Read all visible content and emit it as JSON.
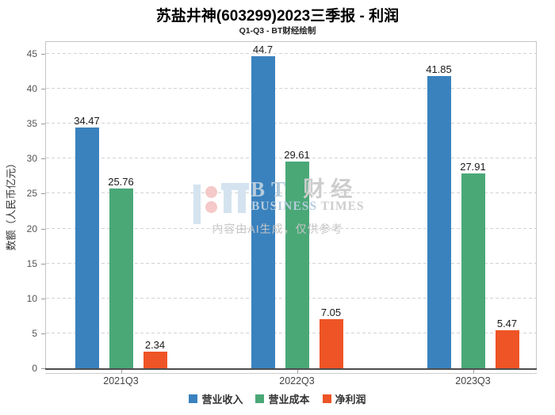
{
  "chart_data": {
    "type": "bar",
    "title": "苏盐井神(603299)2023三季报 - 利润",
    "subtitle": "Q1-Q3 - BT财经绘制",
    "categories": [
      "2021Q3",
      "2022Q3",
      "2023Q3"
    ],
    "series": [
      {
        "name": "营业收入",
        "color": "#3a82be",
        "values": [
          34.47,
          44.7,
          41.85
        ]
      },
      {
        "name": "营业成本",
        "color": "#4aa877",
        "values": [
          25.76,
          29.61,
          27.91
        ]
      },
      {
        "name": "净利润",
        "color": "#ee5426",
        "values": [
          2.34,
          7.05,
          5.47
        ]
      }
    ],
    "xlabel": "",
    "ylabel": "数额（人民币亿元）",
    "ylim": [
      0,
      46.8
    ],
    "yticks": [
      0,
      5,
      10,
      15,
      20,
      25,
      30,
      35,
      40,
      45
    ],
    "grid": "horizontal-dashed",
    "legend_position": "bottom-center"
  },
  "watermark": {
    "brand_initials": "BT",
    "brand_cn": " 财经",
    "brand_en_blue": "BUSINESS",
    "brand_en_gray": " TIMES",
    "disclaimer": "内容由AI生成，仅供参考",
    "colors": {
      "light_blue": "#b5cbdd",
      "light_gray": "#cdcdcd",
      "logo_blue": "#d4e3ef",
      "logo_pink": "#f4c9c7"
    }
  }
}
